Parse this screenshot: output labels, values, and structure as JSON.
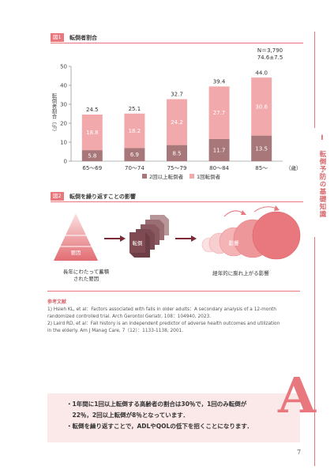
{
  "fig1": {
    "label": "図1",
    "title": "転倒者割合"
  },
  "fig2": {
    "label": "図2",
    "title": "転倒を繰り返すことの影響",
    "pyramid_label": "要因",
    "pyramid_caption": [
      "長年にわたって蓄積",
      "された要因"
    ],
    "stack_label": "転倒",
    "circles_label": "影響",
    "circles_caption": "経年的に膨れ上がる影響"
  },
  "chart_data": {
    "type": "bar",
    "stacked": true,
    "categories": [
      "65～69",
      "70～74",
      "75～79",
      "80～84",
      "85～"
    ],
    "series": [
      {
        "name": "2回以上転倒者",
        "values": [
          5.8,
          6.9,
          8.5,
          11.7,
          13.5
        ],
        "color": "#a8777a"
      },
      {
        "name": "1回転倒者",
        "values": [
          18.8,
          18.2,
          24.2,
          27.7,
          30.6
        ],
        "color": "#f2a9ab"
      }
    ],
    "totals": [
      24.5,
      25.1,
      32.7,
      39.4,
      44.0
    ],
    "total_labels": [
      "24.5",
      "25.1",
      "32.7",
      "39.4",
      "44.0"
    ],
    "ylabel": "転倒者割合（％）",
    "xunit": "（歳）",
    "ylim": [
      0,
      50
    ],
    "yticks": [
      0,
      10,
      20,
      30,
      40,
      50
    ],
    "annotation": [
      "N＝3,790",
      "74.6±7.5"
    ],
    "legend_position": "bottom"
  },
  "references": {
    "title": "参考文献",
    "lines": [
      "1) Hsieh KL, et al：Factors associated with falls in older adults：A secondary analysis of a 12-month",
      "    randomized controlled trial. Arch Gerontol Geriatr, 108：104940, 2023.",
      "2) Laird RD, et al：Fall history is an independent predictor of adverse health outcomes and utilization",
      "    in the elderly. Am J Manag Care, 7（12）：1133-1138, 2001."
    ]
  },
  "sidebar": {
    "text": "Ⅰ　転倒予防の基礎知識"
  },
  "answer": {
    "mark": "A",
    "lines": [
      "・1年間に1回以上転倒する高齢者の割合は30％で，1回のみ転倒が",
      "　22％，2回以上転倒が8％となっています．",
      "・転倒を繰り返すことで，ADLやQOLの低下を招くことになります．"
    ]
  },
  "page_number": "7"
}
